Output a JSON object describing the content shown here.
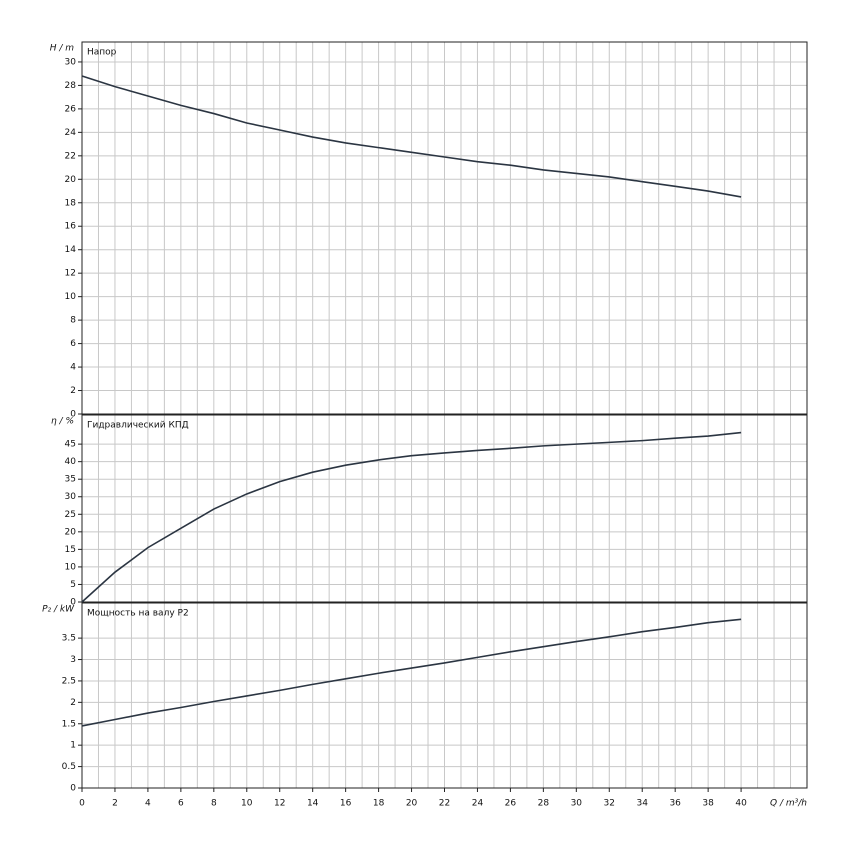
{
  "chart_data": [
    {
      "type": "line",
      "label": "Напор",
      "ylabel": "H / m",
      "x": [
        0,
        2,
        4,
        6,
        8,
        10,
        12,
        14,
        16,
        18,
        20,
        22,
        24,
        26,
        28,
        30,
        32,
        34,
        36,
        38,
        40
      ],
      "series": [
        {
          "color": "#2b3542",
          "values": [
            28.8,
            27.9,
            27.1,
            26.3,
            25.6,
            24.8,
            24.2,
            23.6,
            23.1,
            22.7,
            22.3,
            21.9,
            21.5,
            21.2,
            20.8,
            20.5,
            20.2,
            19.8,
            19.4,
            19.0,
            18.5
          ]
        }
      ],
      "xlim": [
        0,
        44
      ],
      "ylim": [
        0,
        31.7
      ],
      "yticks": [
        0,
        2,
        4,
        6,
        8,
        10,
        12,
        14,
        16,
        18,
        20,
        22,
        24,
        26,
        28,
        30
      ],
      "xgrid": [
        1,
        2,
        3,
        4,
        5,
        6,
        7,
        8,
        9,
        10,
        11,
        12,
        13,
        14,
        15,
        16,
        17,
        18,
        19,
        20,
        21,
        22,
        23,
        24,
        25,
        26,
        27,
        28,
        29,
        30,
        31,
        32,
        33,
        34,
        35,
        36,
        37,
        38,
        39,
        40,
        41,
        42,
        43
      ],
      "grid": true
    },
    {
      "type": "line",
      "label": "Гидравлический КПД",
      "ylabel": "η / %",
      "x": [
        0,
        2,
        4,
        6,
        8,
        10,
        12,
        14,
        16,
        18,
        20,
        22,
        24,
        26,
        28,
        30,
        32,
        34,
        36,
        38,
        40
      ],
      "series": [
        {
          "color": "#2b3542",
          "values": [
            0,
            8.5,
            15.5,
            21,
            26.5,
            30.8,
            34.3,
            37,
            39,
            40.5,
            41.7,
            42.5,
            43.2,
            43.8,
            44.5,
            45,
            45.5,
            46,
            46.7,
            47.3,
            48.3
          ]
        }
      ],
      "xlim": [
        0,
        44
      ],
      "ylim": [
        0,
        53.3
      ],
      "yticks": [
        0,
        5,
        10,
        15,
        20,
        25,
        30,
        35,
        40,
        45
      ],
      "xgrid": [
        1,
        2,
        3,
        4,
        5,
        6,
        7,
        8,
        9,
        10,
        11,
        12,
        13,
        14,
        15,
        16,
        17,
        18,
        19,
        20,
        21,
        22,
        23,
        24,
        25,
        26,
        27,
        28,
        29,
        30,
        31,
        32,
        33,
        34,
        35,
        36,
        37,
        38,
        39,
        40,
        41,
        42,
        43
      ],
      "grid": true
    },
    {
      "type": "line",
      "label": "Мощность на валу P2",
      "ylabel": "P₂ / kW",
      "xlabel": "Q / m³/h",
      "x": [
        0,
        2,
        4,
        6,
        8,
        10,
        12,
        14,
        16,
        18,
        20,
        22,
        24,
        26,
        28,
        30,
        32,
        34,
        36,
        38,
        40
      ],
      "series": [
        {
          "color": "#2b3542",
          "values": [
            1.45,
            1.6,
            1.75,
            1.88,
            2.02,
            2.15,
            2.28,
            2.42,
            2.55,
            2.68,
            2.8,
            2.92,
            3.05,
            3.18,
            3.3,
            3.42,
            3.53,
            3.65,
            3.75,
            3.86,
            3.94
          ]
        }
      ],
      "xlim": [
        0,
        44
      ],
      "ylim": [
        0,
        4.32
      ],
      "xticks": [
        0,
        2,
        4,
        6,
        8,
        10,
        12,
        14,
        16,
        18,
        20,
        22,
        24,
        26,
        28,
        30,
        32,
        34,
        36,
        38,
        40
      ],
      "yticks": [
        0,
        0.5,
        1,
        1.5,
        2,
        2.5,
        3,
        3.5
      ],
      "xgrid": [
        1,
        2,
        3,
        4,
        5,
        6,
        7,
        8,
        9,
        10,
        11,
        12,
        13,
        14,
        15,
        16,
        17,
        18,
        19,
        20,
        21,
        22,
        23,
        24,
        25,
        26,
        27,
        28,
        29,
        30,
        31,
        32,
        33,
        34,
        35,
        36,
        37,
        38,
        39,
        40,
        41,
        42,
        43
      ],
      "grid": true
    }
  ]
}
